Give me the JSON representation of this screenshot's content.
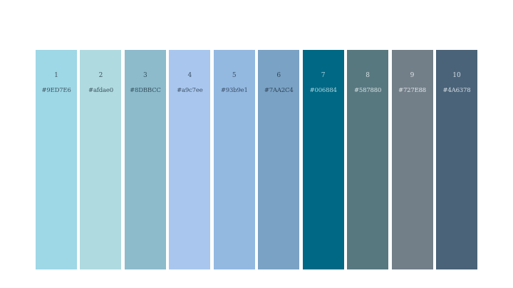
{
  "swatches": [
    {
      "number": "1",
      "label": "#9ED7E6",
      "color": "#9ED7E6",
      "text_color": "#3d5560"
    },
    {
      "number": "2",
      "label": "#afdae0",
      "color": "#afdae0",
      "text_color": "#3d5560"
    },
    {
      "number": "3",
      "label": "#8DBBCC",
      "color": "#8DBBCC",
      "text_color": "#33505c"
    },
    {
      "number": "4",
      "label": "#a9c7ee",
      "color": "#a9c7ee",
      "text_color": "#3d5068"
    },
    {
      "number": "5",
      "label": "#93b9e1",
      "color": "#93b9e1",
      "text_color": "#3a4e66"
    },
    {
      "number": "6",
      "label": "#7AA2C4",
      "color": "#7AA2C4",
      "text_color": "#2e4358"
    },
    {
      "number": "7",
      "label": "#006884",
      "color": "#006884",
      "text_color": "#a9d3e0"
    },
    {
      "number": "8",
      "label": "#587880",
      "color": "#587880",
      "text_color": "#d3e0e3"
    },
    {
      "number": "9",
      "label": "#727E88",
      "color": "#727E88",
      "text_color": "#e0e5e9"
    },
    {
      "number": "10",
      "label": "#4A6378",
      "color": "#4A6378",
      "text_color": "#d5dee6"
    }
  ]
}
